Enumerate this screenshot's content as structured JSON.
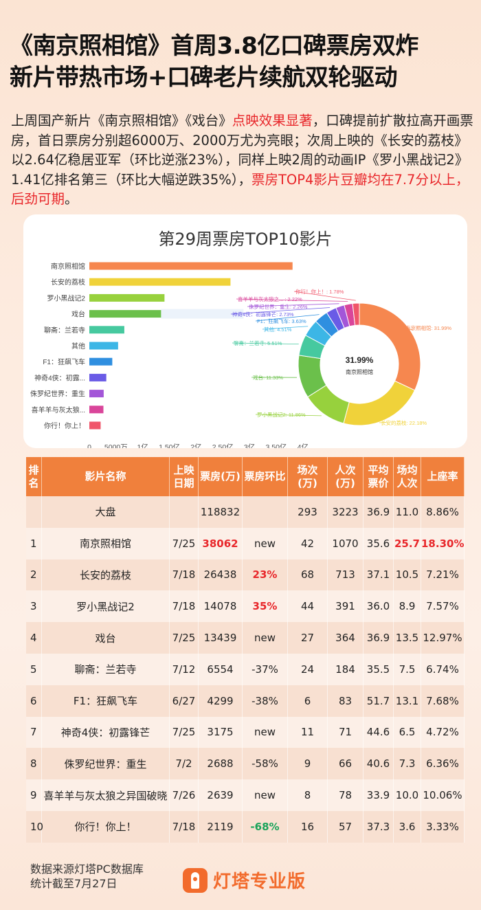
{
  "headline": {
    "line1": "《南京照相馆》首周3.8亿口碑票房双炸",
    "line2": "新片带热市场+口碑老片续航双轮驱动"
  },
  "intro": {
    "p1": "上周国产新片《南京照相馆》《戏台》",
    "p1_hl": "点映效果显著",
    "p2": "，口碑提前扩散拉高开画票房，首日票房分别超6000万、2000万尤为亮眼；次周上映的《长安的荔枝》以2.64亿稳居亚军（环比逆涨23%），同样上映2周的动画IP《罗小黑战记2》1.41亿排名第三（环比大幅逆跌35%），",
    "p2_hl": "票房TOP4影片豆瓣均在7.7分以上，后劲可期",
    "p3": "。"
  },
  "colors": {
    "accent": "#f0803c",
    "red": "#e8262a",
    "green": "#19a35a"
  },
  "chart_data": [
    {
      "type": "bar",
      "orientation": "horizontal",
      "title": "第29周票房TOP10影片",
      "categories": [
        "南京照相馆",
        "长安的荔枝",
        "罗小黑战记2",
        "戏台",
        "聊斋：兰若寺",
        "其他",
        "F1：狂飙飞车",
        "神奇4侠：初露...",
        "侏罗纪世界：重生",
        "喜羊羊与灰太狼...",
        "你行！你上！"
      ],
      "values": [
        3.8062,
        2.6438,
        1.4078,
        1.3439,
        0.6554,
        0.5388,
        0.4299,
        0.3175,
        0.2688,
        0.2639,
        0.2119
      ],
      "unit": "亿",
      "xticks": [
        "0",
        "5000万",
        "1亿",
        "1.50亿",
        "2亿",
        "2.50亿",
        "3亿",
        "3.50亿",
        "4亿"
      ],
      "xlim": [
        0,
        4
      ],
      "colors": [
        "#f6874f",
        "#f0d23a",
        "#97d13d",
        "#6bc04b",
        "#46c99f",
        "#3cb6e6",
        "#2f8fe0",
        "#6a5be6",
        "#a356d8",
        "#d9459a",
        "#f0566a"
      ]
    },
    {
      "type": "pie",
      "variant": "donut",
      "center_value": "31.99%",
      "center_label": "南京照相馆",
      "slices": [
        {
          "label": "南京照相馆",
          "value": 31.99,
          "text": "南京照相馆: 31.99%",
          "color": "#f6874f"
        },
        {
          "label": "长安的荔枝",
          "value": 22.18,
          "text": "长安的荔枝: 22.18%",
          "color": "#f0d23a"
        },
        {
          "label": "罗小黑战记2",
          "value": 11.86,
          "text": "罗小黑战记2: 11.86%",
          "color": "#97d13d"
        },
        {
          "label": "戏台",
          "value": 11.33,
          "text": "戏台: 11.33%",
          "color": "#6bc04b"
        },
        {
          "label": "聊斋：兰若寺",
          "value": 5.51,
          "text": "聊斋：兰若寺: 5.51%",
          "color": "#46c99f"
        },
        {
          "label": "其他",
          "value": 4.51,
          "text": "其他: 4.51%",
          "color": "#3cb6e6"
        },
        {
          "label": "F1：狂飙飞车",
          "value": 3.63,
          "text": "F1：狂飙飞车: 3.63%",
          "color": "#2f8fe0"
        },
        {
          "label": "神奇4侠：初露锋芒",
          "value": 2.73,
          "text": "神奇4侠：初露锋芒: 2.73%",
          "color": "#6a5be6"
        },
        {
          "label": "侏罗纪世界：重生",
          "value": 2.26,
          "text": "侏罗纪世界：重生: 2.26%",
          "color": "#a356d8"
        },
        {
          "label": "喜羊羊与灰太狼之...",
          "value": 2.22,
          "text": "喜羊羊与灰太狼之... : 2.22%",
          "color": "#d9459a"
        },
        {
          "label": "你行！你上！",
          "value": 1.78,
          "text": "你行！你上！: 1.78%",
          "color": "#f0566a"
        }
      ]
    },
    {
      "type": "table",
      "headers": [
        "排名",
        "影片名称",
        "上映日期",
        "票房(万)",
        "票房环比",
        "场次(万)",
        "人次(万)",
        "平均票价",
        "场均人次",
        "上座率"
      ],
      "rows": [
        {
          "rank": "",
          "name": "大盘",
          "date": "",
          "box": "118832",
          "wow": "",
          "shows": "293",
          "adm": "3223",
          "price": "36.9",
          "avg": "11.0",
          "occ": "8.86%",
          "box_style": "",
          "wow_style": "",
          "avg_style": "",
          "occ_style": ""
        },
        {
          "rank": "1",
          "name": "南京照相馆",
          "date": "7/25",
          "box": "38062",
          "wow": "new",
          "shows": "42",
          "adm": "1070",
          "price": "35.6",
          "avg": "25.7",
          "occ": "18.30%",
          "box_style": "red",
          "wow_style": "",
          "avg_style": "red",
          "occ_style": "red"
        },
        {
          "rank": "2",
          "name": "长安的荔枝",
          "date": "7/18",
          "box": "26438",
          "wow": "23%",
          "shows": "68",
          "adm": "713",
          "price": "37.1",
          "avg": "10.5",
          "occ": "7.21%",
          "box_style": "",
          "wow_style": "red",
          "avg_style": "",
          "occ_style": ""
        },
        {
          "rank": "3",
          "name": "罗小黑战记2",
          "date": "7/18",
          "box": "14078",
          "wow": "35%",
          "shows": "44",
          "adm": "391",
          "price": "36.0",
          "avg": "8.9",
          "occ": "7.57%",
          "box_style": "",
          "wow_style": "red",
          "avg_style": "",
          "occ_style": ""
        },
        {
          "rank": "4",
          "name": "戏台",
          "date": "7/25",
          "box": "13439",
          "wow": "new",
          "shows": "27",
          "adm": "364",
          "price": "36.9",
          "avg": "13.5",
          "occ": "12.97%",
          "box_style": "",
          "wow_style": "",
          "avg_style": "",
          "occ_style": ""
        },
        {
          "rank": "5",
          "name": "聊斋：兰若寺",
          "date": "7/12",
          "box": "6554",
          "wow": "-37%",
          "shows": "24",
          "adm": "184",
          "price": "35.5",
          "avg": "7.5",
          "occ": "6.74%",
          "box_style": "",
          "wow_style": "",
          "avg_style": "",
          "occ_style": ""
        },
        {
          "rank": "6",
          "name": "F1：狂飙飞车",
          "date": "6/27",
          "box": "4299",
          "wow": "-38%",
          "shows": "6",
          "adm": "83",
          "price": "51.7",
          "avg": "13.1",
          "occ": "7.68%",
          "box_style": "",
          "wow_style": "",
          "avg_style": "",
          "occ_style": ""
        },
        {
          "rank": "7",
          "name": "神奇4侠：初露锋芒",
          "date": "7/25",
          "box": "3175",
          "wow": "new",
          "shows": "11",
          "adm": "71",
          "price": "44.6",
          "avg": "6.5",
          "occ": "4.72%",
          "box_style": "",
          "wow_style": "",
          "avg_style": "",
          "occ_style": ""
        },
        {
          "rank": "8",
          "name": "侏罗纪世界：重生",
          "date": "7/2",
          "box": "2688",
          "wow": "-58%",
          "shows": "9",
          "adm": "66",
          "price": "40.6",
          "avg": "7.3",
          "occ": "6.36%",
          "box_style": "",
          "wow_style": "",
          "avg_style": "",
          "occ_style": ""
        },
        {
          "rank": "9",
          "name": "喜羊羊与灰太狼之异国破晓",
          "date": "7/26",
          "box": "2639",
          "wow": "new",
          "shows": "8",
          "adm": "78",
          "price": "33.9",
          "avg": "10.0",
          "occ": "10.06%",
          "box_style": "",
          "wow_style": "",
          "avg_style": "",
          "occ_style": ""
        },
        {
          "rank": "10",
          "name": "你行！你上！",
          "date": "7/18",
          "box": "2119",
          "wow": "-68%",
          "shows": "16",
          "adm": "57",
          "price": "37.3",
          "avg": "3.6",
          "occ": "3.33%",
          "box_style": "",
          "wow_style": "green",
          "avg_style": "",
          "occ_style": ""
        }
      ]
    }
  ],
  "footer": {
    "source_line1": "数据来源灯塔PC数据库",
    "source_line2": "统计截至7月27日",
    "logo_text": "灯塔专业版",
    "logo_icon": "lighthouse-logo-icon"
  }
}
